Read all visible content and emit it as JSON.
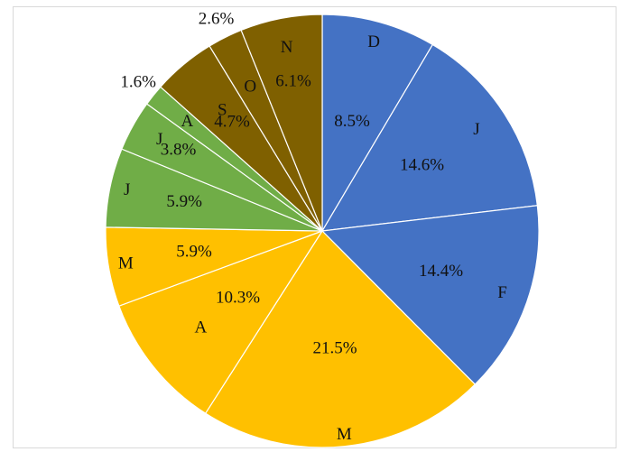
{
  "chart_data": {
    "type": "pie",
    "title": "",
    "categories": [
      "D",
      "J",
      "F",
      "M",
      "A",
      "M",
      "J",
      "J",
      "A",
      "S",
      "O",
      "N"
    ],
    "values": [
      8.5,
      14.6,
      14.4,
      21.5,
      10.3,
      5.9,
      5.9,
      3.8,
      1.6,
      4.7,
      2.6,
      6.1
    ],
    "value_labels": [
      "8.5%",
      "14.6%",
      "14.4%",
      "21.5%",
      "10.3%",
      "5.9%",
      "5.9%",
      "3.8%",
      "1.6%",
      "4.7%",
      "2.6%",
      "6.1%"
    ],
    "colors": [
      "#4472c4",
      "#4472c4",
      "#4472c4",
      "#ffc000",
      "#ffc000",
      "#ffc000",
      "#70ad47",
      "#70ad47",
      "#70ad47",
      "#7f6000",
      "#7f6000",
      "#7f6000"
    ],
    "start_angle": "12 o'clock",
    "direction": "clockwise",
    "legend": "none"
  }
}
